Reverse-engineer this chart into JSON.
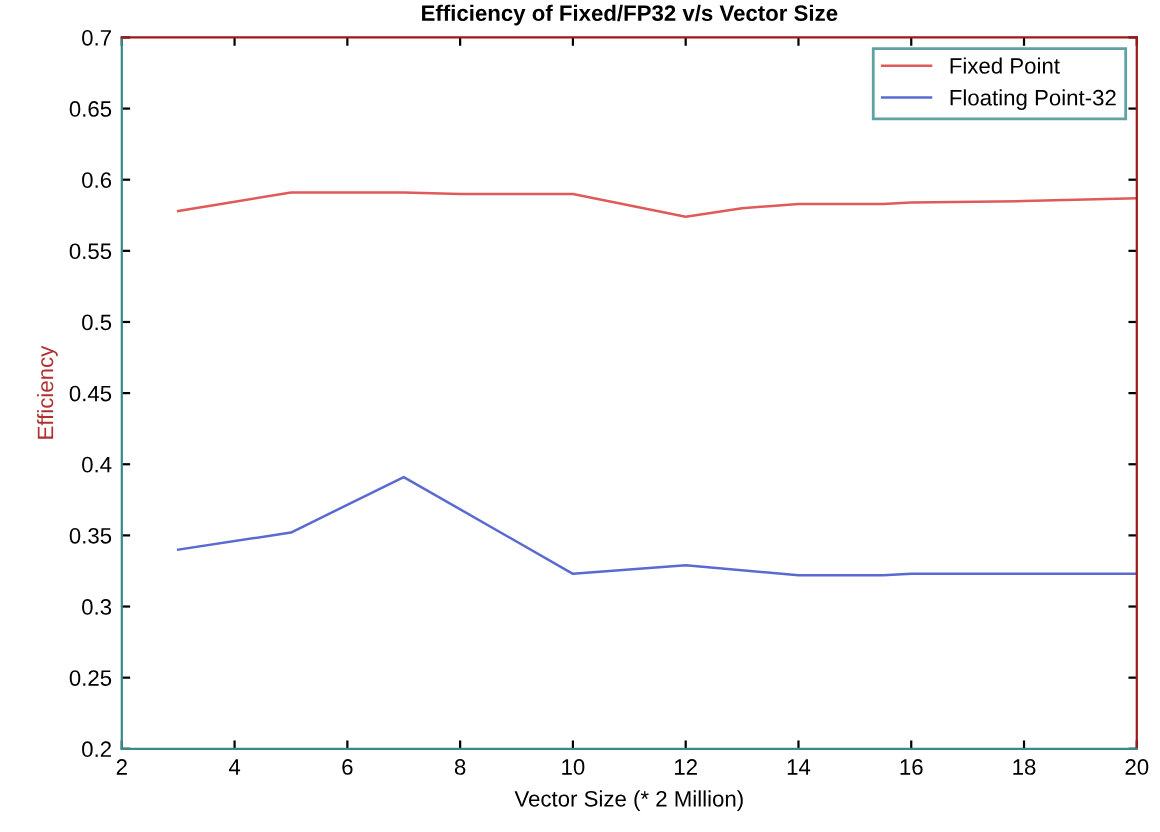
{
  "chart_data": {
    "type": "line",
    "title": "Efficiency of Fixed/FP32 v/s Vector Size",
    "xlabel": "Vector Size (* 2 Million)",
    "ylabel": "Efficiency",
    "xlim": [
      2,
      20
    ],
    "xticks": [
      2,
      4,
      6,
      8,
      10,
      12,
      14,
      16,
      18,
      20
    ],
    "ylim": [
      0.2,
      0.7
    ],
    "yticks": [
      0.2,
      0.25,
      0.3,
      0.35,
      0.4,
      0.45,
      0.5,
      0.55,
      0.6,
      0.65,
      0.7
    ],
    "grid": false,
    "legend": "top right",
    "marker": "none",
    "line_style": "solid",
    "series": [
      {
        "name": "Fixed Point",
        "color": "#e05a5a",
        "x": [
          3,
          5,
          7,
          8,
          10,
          12,
          13,
          14,
          15.5,
          16,
          18,
          20
        ],
        "values": [
          0.578,
          0.591,
          0.591,
          0.59,
          0.59,
          0.574,
          0.58,
          0.583,
          0.583,
          0.584,
          0.585,
          0.587
        ]
      },
      {
        "name": "Floating Point-32",
        "color": "#5a6ad0",
        "x": [
          3,
          5,
          7,
          10,
          12,
          14,
          15.5,
          16,
          20
        ],
        "values": [
          0.34,
          0.352,
          0.391,
          0.323,
          0.329,
          0.322,
          0.322,
          0.323,
          0.323
        ]
      }
    ]
  }
}
